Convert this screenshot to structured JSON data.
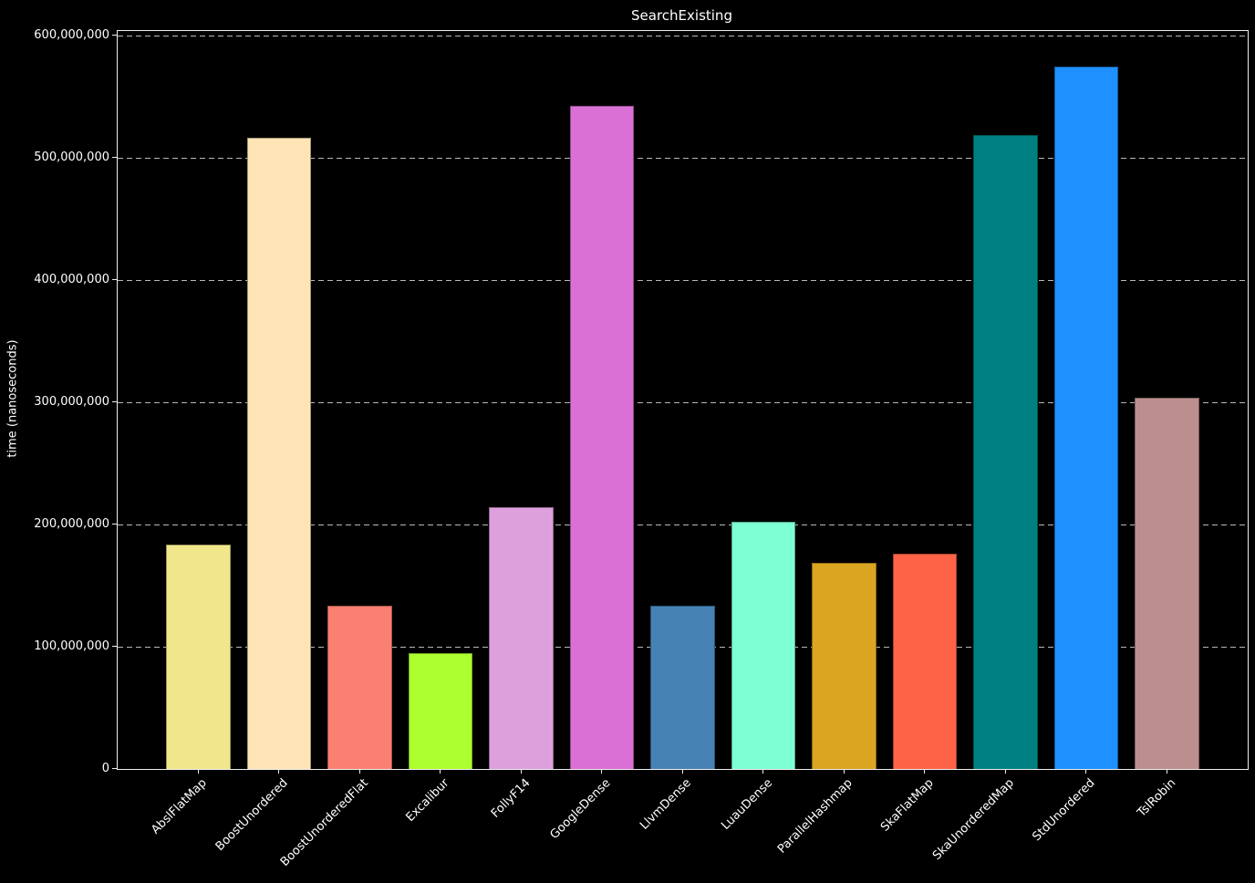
{
  "chart_data": {
    "type": "bar",
    "title": "SearchExisting",
    "xlabel": "",
    "ylabel": "time (nanoseconds)",
    "categories": [
      "AbslFlatMap",
      "BoostUnordered",
      "BoostUnorderedFlat",
      "Excalibur",
      "FollyF14",
      "GoogleDense",
      "LlvmDense",
      "LuauDense",
      "ParallelHashmap",
      "SkaFlatMap",
      "SkaUnorderedMap",
      "StdUnordered",
      "TslRobin"
    ],
    "values": [
      184000000,
      517000000,
      134000000,
      95000000,
      214000000,
      543000000,
      134000000,
      202000000,
      169000000,
      176000000,
      519000000,
      575000000,
      304000000
    ],
    "bar_colors": [
      "#f0e68c",
      "#ffe4b5",
      "#fa8072",
      "#adff2f",
      "#dda0dd",
      "#da70d6",
      "#4682b4",
      "#7fffd4",
      "#daa520",
      "#ff6347",
      "#008080",
      "#1e90ff",
      "#bc8f8f"
    ],
    "ylim": [
      0,
      604000000
    ],
    "yticks": [
      0,
      100000000,
      200000000,
      300000000,
      400000000,
      500000000,
      600000000
    ],
    "ytick_labels": [
      "0",
      "100,000,000",
      "200,000,000",
      "300,000,000",
      "400,000,000",
      "500,000,000",
      "600,000,000"
    ],
    "grid": "horizontal-dashed",
    "legend": "none",
    "background_color": "#000000",
    "text_color": "#ffffff",
    "gridline_color": "#b8b8b8",
    "spine_color": "#f0f0f0",
    "bar_width_fraction": 0.8
  }
}
